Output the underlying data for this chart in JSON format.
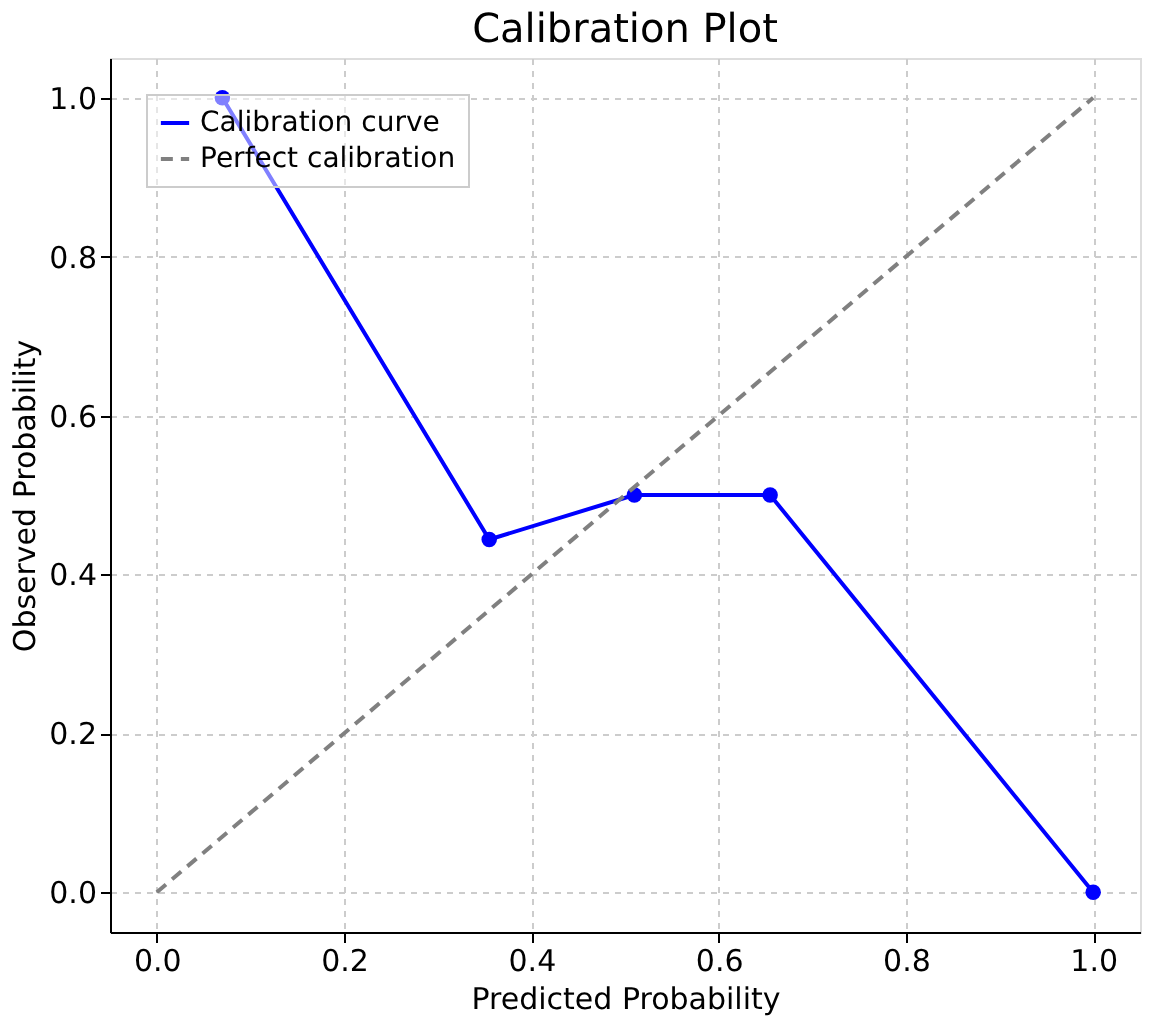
{
  "chart_data": {
    "type": "line",
    "title": "Calibration Plot",
    "xlabel": "Predicted Probability",
    "ylabel": "Observed Probability",
    "series": [
      {
        "name": "Calibration curve",
        "color": "#0000ff",
        "x": [
          0.07,
          0.355,
          0.51,
          0.655,
          1.0
        ],
        "values": [
          1.0,
          0.444,
          0.5,
          0.5,
          0.0
        ],
        "marker": "circle",
        "line_style": "solid"
      },
      {
        "name": "Perfect calibration",
        "color": "#808080",
        "x": [
          0.0,
          1.0
        ],
        "values": [
          0.0,
          1.0
        ],
        "marker": "none",
        "line_style": "dashed"
      }
    ],
    "xlim": [
      -0.05,
      1.05
    ],
    "ylim": [
      -0.05,
      1.05
    ],
    "xticks": [
      {
        "value": 0,
        "label": "0.0"
      },
      0.2,
      0.4,
      0.6,
      0.8,
      {
        "value": 1,
        "label": "1.0"
      }
    ],
    "yticks": [
      {
        "value": 0,
        "label": "0.0"
      },
      0.2,
      0.4,
      0.6,
      0.8,
      {
        "value": 1,
        "label": "1.0"
      }
    ],
    "grid": true,
    "legend": "top left"
  }
}
